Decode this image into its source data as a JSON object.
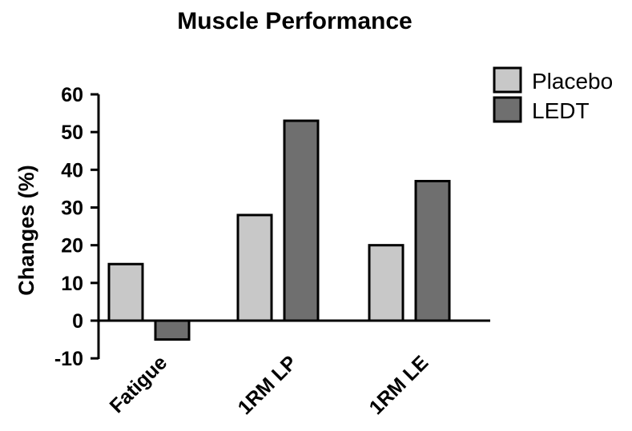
{
  "chart_data": {
    "type": "bar",
    "title": "Muscle Performance",
    "xlabel": "",
    "ylabel": "Changes (%)",
    "ylim": [
      -10,
      60
    ],
    "yticks": [
      60,
      50,
      40,
      30,
      20,
      10,
      0,
      -10
    ],
    "categories": [
      "Fatigue",
      "1RM LP",
      "1RM LE"
    ],
    "series": [
      {
        "name": "Placebo",
        "values": [
          15,
          28,
          20
        ],
        "color": "#c8c8c8"
      },
      {
        "name": "LEDT",
        "values": [
          -5,
          53,
          37
        ],
        "color": "#6f6f6f"
      }
    ],
    "legend_position": "top-right",
    "grid": false
  }
}
